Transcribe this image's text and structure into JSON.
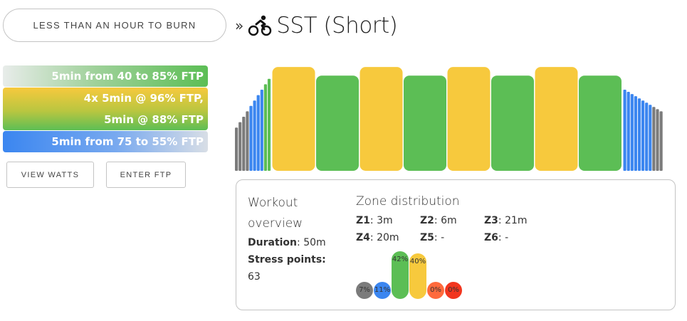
{
  "header": {
    "back_label": "LESS THAN AN HOUR TO BURN",
    "breadcrumb_sep": "»",
    "title": "SST (Short)",
    "title_icon": "bike-icon"
  },
  "steps": [
    {
      "lines": [
        "5min from 40 to 85% FTP"
      ]
    },
    {
      "lines": [
        "4x 5min @ 96% FTP,",
        "5min @ 88% FTP"
      ]
    },
    {
      "lines": [
        "5min from 75 to 55% FTP"
      ]
    }
  ],
  "buttons": {
    "view_watts": "VIEW WATTS",
    "enter_ftp": "ENTER FTP"
  },
  "colors": {
    "z1": "#7b7b7b",
    "z2": "#3b86f0",
    "z3": "#5cbe55",
    "z4": "#f7c93d",
    "z5": "#ff6a3d",
    "z6": "#f2361f"
  },
  "workout_chart": {
    "warmup_ramp": [
      {
        "pct": 40,
        "zone": "z1"
      },
      {
        "pct": 45,
        "zone": "z1"
      },
      {
        "pct": 50,
        "zone": "z1"
      },
      {
        "pct": 55,
        "zone": "z1"
      },
      {
        "pct": 60,
        "zone": "z2"
      },
      {
        "pct": 65,
        "zone": "z2"
      },
      {
        "pct": 70,
        "zone": "z2"
      },
      {
        "pct": 75,
        "zone": "z2"
      },
      {
        "pct": 80,
        "zone": "z3"
      },
      {
        "pct": 85,
        "zone": "z3"
      }
    ],
    "intervals": [
      {
        "pct": 96,
        "zone": "z4"
      },
      {
        "pct": 88,
        "zone": "z3"
      },
      {
        "pct": 96,
        "zone": "z4"
      },
      {
        "pct": 88,
        "zone": "z3"
      },
      {
        "pct": 96,
        "zone": "z4"
      },
      {
        "pct": 88,
        "zone": "z3"
      },
      {
        "pct": 96,
        "zone": "z4"
      },
      {
        "pct": 88,
        "zone": "z3"
      }
    ],
    "cooldown_ramp": [
      {
        "pct": 75,
        "zone": "z2"
      },
      {
        "pct": 73,
        "zone": "z2"
      },
      {
        "pct": 71,
        "zone": "z2"
      },
      {
        "pct": 69,
        "zone": "z2"
      },
      {
        "pct": 67,
        "zone": "z2"
      },
      {
        "pct": 65,
        "zone": "z2"
      },
      {
        "pct": 63,
        "zone": "z2"
      },
      {
        "pct": 61,
        "zone": "z2"
      },
      {
        "pct": 59,
        "zone": "z1"
      },
      {
        "pct": 57,
        "zone": "z1"
      },
      {
        "pct": 55,
        "zone": "z1"
      }
    ]
  },
  "overview": {
    "title": "Workout overview",
    "duration_label": "Duration",
    "duration_value": "50m",
    "stress_label": "Stress points",
    "stress_value": "63"
  },
  "zone_distribution": {
    "title": "Zone distribution",
    "stats": [
      {
        "label": "Z1",
        "value": "3m"
      },
      {
        "label": "Z2",
        "value": "6m"
      },
      {
        "label": "Z3",
        "value": "21m"
      },
      {
        "label": "Z4",
        "value": "20m"
      },
      {
        "label": "Z5",
        "value": "-"
      },
      {
        "label": "Z6",
        "value": "-"
      }
    ],
    "bars": [
      {
        "zone": "z1",
        "pct": 7,
        "label": "7%"
      },
      {
        "zone": "z2",
        "pct": 11,
        "label": "11%"
      },
      {
        "zone": "z3",
        "pct": 42,
        "label": "42%"
      },
      {
        "zone": "z4",
        "pct": 40,
        "label": "40%"
      },
      {
        "zone": "z5",
        "pct": 0,
        "label": "0%"
      },
      {
        "zone": "z6",
        "pct": 0,
        "label": "0%"
      }
    ]
  }
}
